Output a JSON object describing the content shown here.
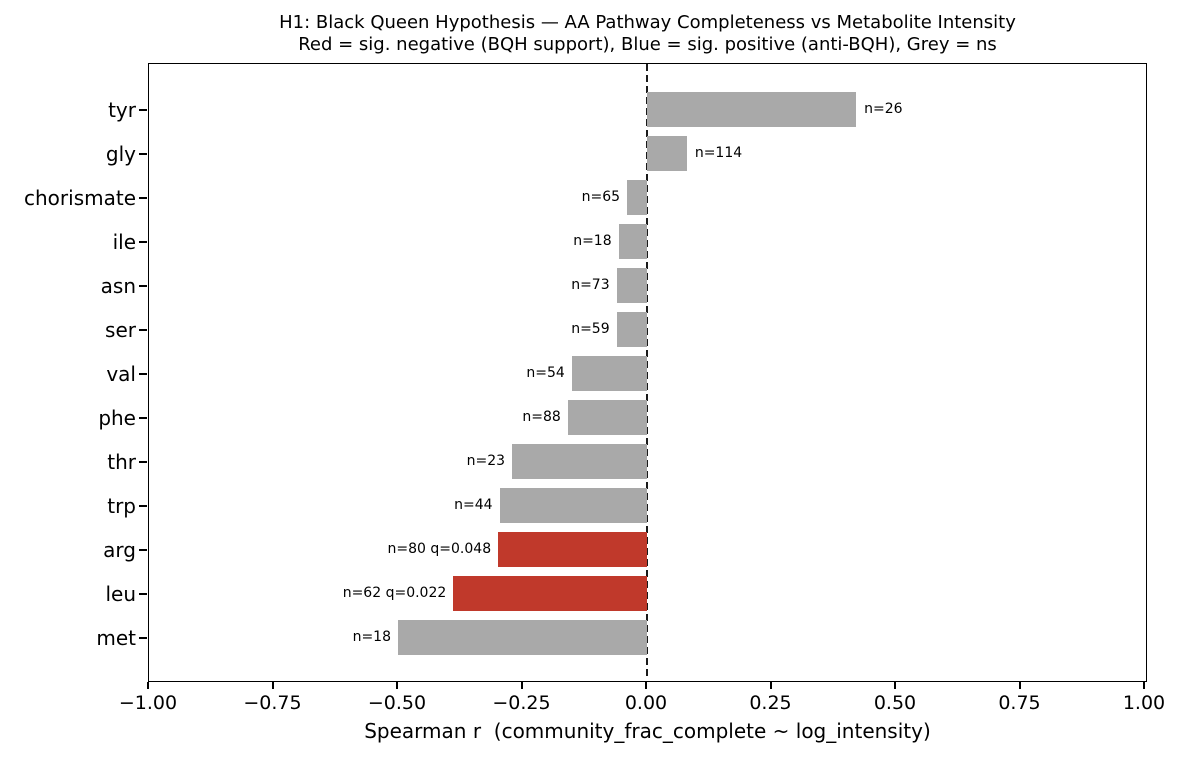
{
  "chart_data": {
    "type": "bar",
    "orientation": "horizontal",
    "title": "H1: Black Queen Hypothesis — AA Pathway Completeness vs Metabolite Intensity",
    "subtitle": "Red = sig. negative (BQH support), Blue = sig. positive (anti-BQH), Grey = ns",
    "xlabel": "Spearman r  (community_frac_complete ~ log_intensity)",
    "ylabel": "",
    "xlim": [
      -1.0,
      1.0
    ],
    "grid": false,
    "legend": "none",
    "zero_reference_line": {
      "x": 0.0,
      "style": "dashed",
      "color": "#1a1a1a"
    },
    "xticks": [
      {
        "value": -1.0,
        "label": "−1.00"
      },
      {
        "value": -0.75,
        "label": "−0.75"
      },
      {
        "value": -0.5,
        "label": "−0.50"
      },
      {
        "value": -0.25,
        "label": "−0.25"
      },
      {
        "value": 0.0,
        "label": "0.00"
      },
      {
        "value": 0.25,
        "label": "0.25"
      },
      {
        "value": 0.5,
        "label": "0.50"
      },
      {
        "value": 0.75,
        "label": "0.75"
      },
      {
        "value": 1.0,
        "label": "1.00"
      }
    ],
    "categories": [
      "tyr",
      "gly",
      "chorismate",
      "ile",
      "asn",
      "ser",
      "val",
      "phe",
      "thr",
      "trp",
      "arg",
      "leu",
      "met"
    ],
    "bars": [
      {
        "category": "tyr",
        "r": 0.42,
        "n": 26,
        "annotation": "n=26",
        "significance": "ns"
      },
      {
        "category": "gly",
        "r": 0.08,
        "n": 114,
        "annotation": "n=114",
        "significance": "ns"
      },
      {
        "category": "chorismate",
        "r": -0.04,
        "n": 65,
        "annotation": "n=65",
        "significance": "ns"
      },
      {
        "category": "ile",
        "r": -0.057,
        "n": 18,
        "annotation": "n=18",
        "significance": "ns"
      },
      {
        "category": "asn",
        "r": -0.061,
        "n": 73,
        "annotation": "n=73",
        "significance": "ns"
      },
      {
        "category": "ser",
        "r": -0.061,
        "n": 59,
        "annotation": "n=59",
        "significance": "ns"
      },
      {
        "category": "val",
        "r": -0.151,
        "n": 54,
        "annotation": "n=54",
        "significance": "ns"
      },
      {
        "category": "phe",
        "r": -0.159,
        "n": 88,
        "annotation": "n=88",
        "significance": "ns"
      },
      {
        "category": "thr",
        "r": -0.271,
        "n": 23,
        "annotation": "n=23",
        "significance": "ns"
      },
      {
        "category": "trp",
        "r": -0.296,
        "n": 44,
        "annotation": "n=44",
        "significance": "ns"
      },
      {
        "category": "arg",
        "r": -0.299,
        "n": 80,
        "annotation": "n=80 q=0.048",
        "significance": "sig_negative",
        "q": 0.048
      },
      {
        "category": "leu",
        "r": -0.389,
        "n": 62,
        "annotation": "n=62 q=0.022",
        "significance": "sig_negative",
        "q": 0.022
      },
      {
        "category": "met",
        "r": -0.5,
        "n": 18,
        "annotation": "n=18",
        "significance": "ns"
      }
    ],
    "colors": {
      "sig_negative": "#c0392b",
      "ns": "#a9a9a9",
      "axis": "#000000",
      "background": "#ffffff"
    }
  }
}
